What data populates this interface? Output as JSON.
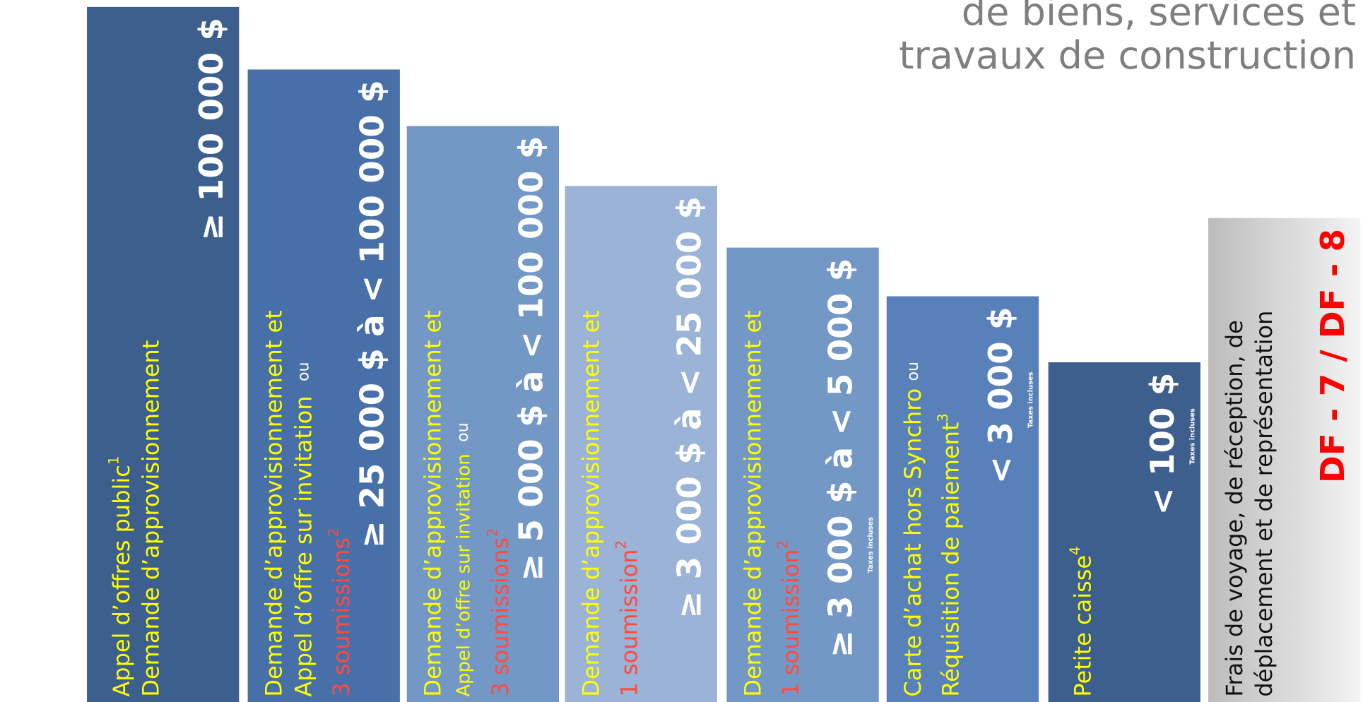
{
  "header": {
    "title_lines": [
      "de biens, services et",
      "travaux de construction"
    ]
  },
  "columns": [
    {
      "lines": [
        "Appel d’offres public",
        "Demande d’approvisionnement"
      ],
      "footnote": "1",
      "amount": "≥ 100 000 $"
    },
    {
      "lines": [
        "Demande d’approvisionnement et",
        "Appel d’offre sur invitation",
        "3 soumissions"
      ],
      "connector": "ou",
      "footnote": "2",
      "amount": "≥ 25 000 $ à < 100 000 $"
    },
    {
      "lines": [
        "Demande d’approvisionnement et",
        "Appel d’offre sur invitation",
        "3 soumissions"
      ],
      "connector": "ou",
      "footnote": "2",
      "amount": "≥ 5 000 $ à < 100 000 $"
    },
    {
      "lines": [
        "Demande d’approvisionnement et",
        "1 soumission"
      ],
      "footnote": "2",
      "amount": "≥ 3 000 $ à < 25 000 $"
    },
    {
      "lines": [
        "Demande d’approvisionnement et",
        "1 soumission"
      ],
      "footnote": "2",
      "amount": "≥ 3 000 $ à < 5 000 $",
      "note": "Taxes incluses"
    },
    {
      "lines": [
        "Carte d’achat hors Synchro",
        "Réquisition de paiement"
      ],
      "connector": "ou",
      "footnote": "3",
      "amount": "< 3 000 $",
      "note": "Taxes incluses"
    },
    {
      "lines": [
        "Petite caisse"
      ],
      "footnote": "4",
      "amount": "< 100 $",
      "note": "Taxes incluses"
    },
    {
      "lines": [
        "Frais de voyage, de réception, de",
        "déplacement et de représentation"
      ],
      "code": "DF - 7 / DF - 8"
    }
  ]
}
